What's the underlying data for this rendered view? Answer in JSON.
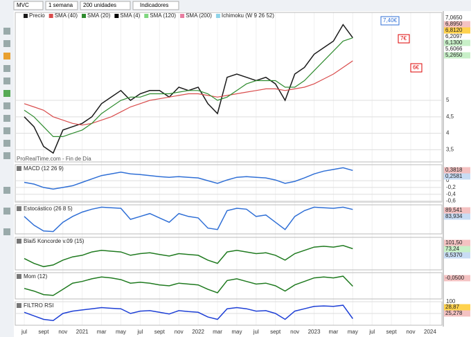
{
  "toolbar": {
    "symbol": "MVC",
    "period": "1 semana",
    "units": "200 unidades",
    "indicators": "Indicadores"
  },
  "time_axis": [
    "jul",
    "sept",
    "nov",
    "2021",
    "mar",
    "may",
    "jul",
    "sept",
    "nov",
    "2022",
    "mar",
    "may",
    "jul",
    "sept",
    "nov",
    "2023",
    "mar",
    "may",
    "jul",
    "sept",
    "nov",
    "2024"
  ],
  "chart_data": [
    {
      "type": "line",
      "title": "Precio",
      "source": "ProRealTime.com - Fin de Día",
      "series": [
        {
          "name": "Precio",
          "color": "#1a1a1a",
          "values": [
            4.5,
            4.2,
            3.6,
            3.4,
            4.1,
            4.2,
            4.3,
            4.5,
            4.9,
            5.1,
            5.3,
            5.0,
            5.2,
            5.3,
            5.3,
            5.1,
            5.4,
            5.3,
            5.4,
            4.9,
            4.6,
            5.7,
            5.8,
            5.7,
            5.6,
            5.7,
            5.5,
            5.0,
            5.8,
            6.0,
            6.4,
            6.6,
            6.8,
            7.3,
            6.9
          ]
        },
        {
          "name": "SMA (40)",
          "color": "#d94c4c",
          "values": [
            4.9,
            4.8,
            4.7,
            4.5,
            4.4,
            4.3,
            4.25,
            4.3,
            4.4,
            4.5,
            4.65,
            4.8,
            4.9,
            5.0,
            5.05,
            5.1,
            5.15,
            5.2,
            5.2,
            5.15,
            5.1,
            5.15,
            5.2,
            5.25,
            5.3,
            5.35,
            5.35,
            5.3,
            5.35,
            5.4,
            5.5,
            5.65,
            5.8,
            6.0,
            6.2
          ]
        },
        {
          "name": "SMA (20)",
          "color": "#2e8b2e",
          "values": [
            4.7,
            4.5,
            4.2,
            3.9,
            3.9,
            4.0,
            4.1,
            4.3,
            4.6,
            4.8,
            5.0,
            5.1,
            5.1,
            5.2,
            5.2,
            5.2,
            5.25,
            5.3,
            5.3,
            5.2,
            5.0,
            5.1,
            5.3,
            5.5,
            5.6,
            5.6,
            5.6,
            5.4,
            5.4,
            5.6,
            5.9,
            6.2,
            6.5,
            6.8,
            6.9
          ]
        }
      ],
      "indicators": [
        {
          "name": "SMA (4)",
          "color": "#000000"
        },
        {
          "name": "SMA (120)",
          "color": "#7fd67f"
        },
        {
          "name": "SMA (200)",
          "color": "#e87da0"
        },
        {
          "name": "Ichimoku (W 9 26 52)",
          "color": "#8fd3e8"
        }
      ],
      "annotations": [
        "7,40€",
        "7€",
        "6€"
      ],
      "ylim": [
        3.13,
        7.67
      ],
      "yticks": [
        {
          "value": 3.5,
          "label": "3,5"
        },
        4,
        {
          "value": 4.5,
          "label": "4,5"
        },
        5
      ],
      "readouts": [
        {
          "label": "7,0650",
          "color": "#ffffff"
        },
        {
          "label": "6,8950",
          "color": "#f4c2c2"
        },
        {
          "label": "6,8120",
          "color": "#ffd24d"
        },
        {
          "label": "6,2097",
          "color": "#ffffff"
        },
        {
          "label": "6,1300",
          "color": "#c8f0c8"
        },
        {
          "label": "5,6066",
          "color": "#ffffff"
        },
        {
          "label": "5,2650",
          "color": "#c8f0c8"
        }
      ]
    },
    {
      "type": "line",
      "title": "MACD (12 26 9)",
      "series": [
        {
          "name": "MACD",
          "color": "#2f6fd6",
          "values": [
            -0.05,
            -0.1,
            -0.2,
            -0.25,
            -0.2,
            -0.15,
            -0.05,
            0.05,
            0.15,
            0.2,
            0.25,
            0.2,
            0.18,
            0.15,
            0.12,
            0.1,
            0.12,
            0.1,
            0.08,
            0,
            -0.08,
            0.02,
            0.1,
            0.12,
            0.1,
            0.08,
            0.02,
            -0.08,
            -0.02,
            0.08,
            0.2,
            0.28,
            0.33,
            0.38,
            0.3
          ]
        }
      ],
      "ylim": [
        -0.63,
        0.47
      ],
      "yticks": [
        0,
        {
          "value": -0.2,
          "label": "-0,2"
        },
        {
          "value": -0.4,
          "label": "-0,4"
        },
        {
          "value": -0.6,
          "label": "-0,6"
        }
      ],
      "readouts": [
        {
          "label": "0,3818",
          "color": "#f4c2c2"
        },
        {
          "label": "0,2581",
          "color": "#c8dcf4"
        }
      ]
    },
    {
      "type": "line",
      "title": "Estocástico (26 8 5)",
      "series": [
        {
          "name": "%K",
          "color": "#2f6fd6",
          "values": [
            60,
            30,
            10,
            8,
            40,
            60,
            75,
            85,
            92,
            90,
            88,
            50,
            60,
            70,
            55,
            40,
            70,
            60,
            55,
            20,
            15,
            80,
            88,
            85,
            60,
            65,
            40,
            15,
            60,
            80,
            92,
            90,
            88,
            92,
            84
          ]
        }
      ],
      "ylim": [
        0,
        100
      ],
      "yticks": [],
      "readouts": [
        {
          "label": "89,541",
          "color": "#f4c2c2"
        },
        {
          "label": "83,934",
          "color": "#c8dcf4"
        }
      ]
    },
    {
      "type": "line",
      "title": "Blai5 Koncorde v.09 (15)",
      "series": [
        {
          "name": "Verde",
          "color": "#1f7a1f",
          "values": [
            20,
            -10,
            -30,
            -20,
            10,
            30,
            40,
            60,
            70,
            65,
            60,
            40,
            50,
            55,
            45,
            35,
            50,
            45,
            40,
            10,
            -10,
            60,
            70,
            60,
            50,
            55,
            40,
            10,
            50,
            70,
            90,
            95,
            90,
            100,
            80
          ]
        }
      ],
      "ylim": [
        -50,
        150
      ],
      "yticks": [],
      "readouts": [
        {
          "label": "101,50",
          "color": "#f4c2c2"
        },
        {
          "label": "73,24",
          "color": "#c8f0c8"
        },
        {
          "label": "6,5370",
          "color": "#c8dcf4"
        }
      ]
    },
    {
      "type": "line",
      "title": "Mom (12)",
      "series": [
        {
          "name": "Mom",
          "color": "#1f7a1f",
          "values": [
            -0.3,
            -0.6,
            -1,
            -1.1,
            -0.4,
            0.3,
            0.5,
            0.8,
            1.0,
            0.9,
            0.7,
            0.3,
            0.4,
            0.3,
            0.1,
            0,
            0.3,
            0.2,
            0.1,
            -0.4,
            -0.8,
            0.6,
            0.8,
            0.5,
            0.2,
            0.3,
            0,
            -0.6,
            0.1,
            0.5,
            0.9,
            1.0,
            0.9,
            1.1,
            -0.05
          ]
        }
      ],
      "ylim": [
        -1.5,
        1.5
      ],
      "yticks": [],
      "readouts": [
        {
          "label": "-0,0500",
          "color": "#f4c2c2"
        }
      ]
    },
    {
      "type": "line",
      "title": "FILTRO RSI",
      "series": [
        {
          "name": "RSI",
          "color": "#1d3fd6",
          "values": [
            55,
            40,
            25,
            20,
            50,
            60,
            65,
            70,
            75,
            72,
            70,
            50,
            60,
            62,
            55,
            48,
            62,
            58,
            55,
            35,
            25,
            70,
            75,
            70,
            60,
            62,
            50,
            25,
            60,
            70,
            80,
            82,
            80,
            85,
            28
          ]
        }
      ],
      "ylim": [
        0,
        100
      ],
      "yticks": [
        100,
        50
      ],
      "readouts": [
        {
          "label": "28,87",
          "color": "#ffd24d"
        },
        {
          "label": "25,278",
          "color": "#f4c2c2"
        }
      ]
    }
  ]
}
